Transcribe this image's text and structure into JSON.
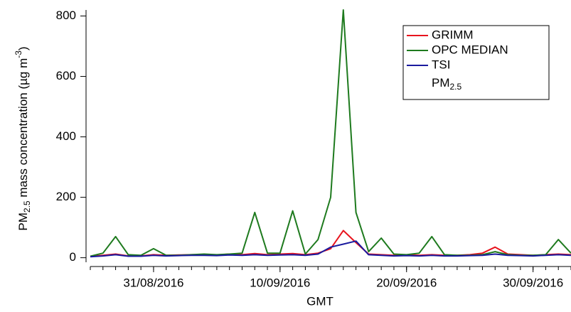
{
  "chart_data": {
    "type": "line",
    "y_label_parts": [
      "PM",
      "2.5",
      " mass concentration (µg m",
      "-3",
      ")"
    ],
    "x_label": "GMT",
    "legend_note_parts": [
      "PM",
      "2.5"
    ],
    "legend": "upper right",
    "x": [
      "26/08/2016",
      "27/08/2016",
      "28/08/2016",
      "29/08/2016",
      "30/08/2016",
      "31/08/2016",
      "01/09/2016",
      "02/09/2016",
      "03/09/2016",
      "04/09/2016",
      "05/09/2016",
      "06/09/2016",
      "07/09/2016",
      "08/09/2016",
      "09/09/2016",
      "10/09/2016",
      "11/09/2016",
      "12/09/2016",
      "13/09/2016",
      "14/09/2016",
      "15/09/2016",
      "16/09/2016",
      "17/09/2016",
      "18/09/2016",
      "19/09/2016",
      "20/09/2016",
      "21/09/2016",
      "22/09/2016",
      "23/09/2016",
      "24/09/2016",
      "25/09/2016",
      "26/09/2016",
      "27/09/2016",
      "28/09/2016",
      "29/09/2016",
      "30/09/2016",
      "01/10/2016",
      "02/10/2016",
      "03/10/2016"
    ],
    "series": [
      {
        "name": "GRIMM",
        "color": "#e8141e",
        "values": [
          4,
          8,
          12,
          6,
          6,
          10,
          8,
          9,
          10,
          10,
          9,
          12,
          10,
          14,
          10,
          12,
          14,
          10,
          15,
          30,
          90,
          50,
          12,
          10,
          8,
          9,
          8,
          10,
          8,
          8,
          10,
          15,
          35,
          12,
          10,
          8,
          10,
          12,
          10
        ]
      },
      {
        "name": "OPC MEDIAN",
        "color": "#1e7a1e",
        "values": [
          5,
          15,
          70,
          10,
          8,
          30,
          8,
          8,
          10,
          12,
          10,
          12,
          15,
          150,
          15,
          15,
          155,
          12,
          60,
          200,
          820,
          150,
          20,
          65,
          12,
          10,
          15,
          70,
          10,
          8,
          8,
          10,
          20,
          10,
          8,
          8,
          10,
          60,
          15
        ]
      },
      {
        "name": "TSI",
        "color": "#1a1a9e",
        "values": [
          3,
          6,
          10,
          5,
          5,
          8,
          6,
          7,
          8,
          8,
          7,
          9,
          8,
          10,
          8,
          9,
          10,
          8,
          12,
          35,
          45,
          55,
          10,
          8,
          6,
          7,
          6,
          8,
          6,
          6,
          7,
          8,
          12,
          8,
          7,
          6,
          8,
          10,
          8
        ]
      }
    ],
    "xlim": [
      "26/08/2016",
      "03/10/2016"
    ],
    "xticks": [
      "31/08/2016",
      "10/09/2016",
      "20/09/2016",
      "30/09/2016"
    ],
    "ylim": [
      -15,
      820
    ],
    "yticks": [
      0,
      200,
      400,
      600,
      800
    ]
  }
}
